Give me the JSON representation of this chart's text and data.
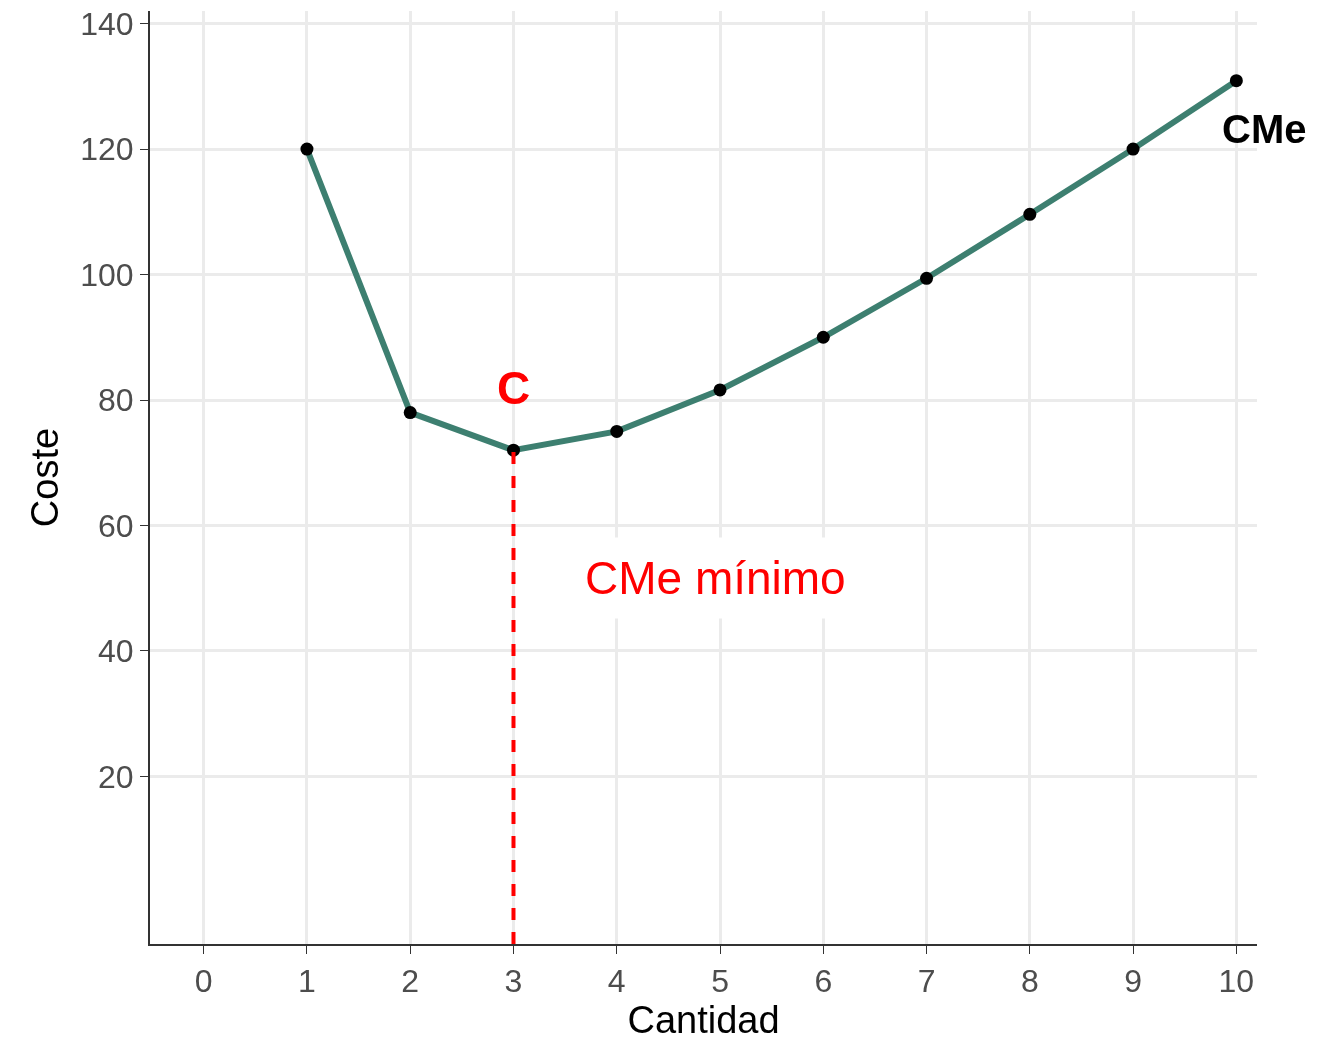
{
  "chart_data": {
    "type": "line",
    "xlabel": "Cantidad",
    "ylabel": "Coste",
    "x": [
      1,
      2,
      3,
      4,
      5,
      6,
      7,
      8,
      9,
      10
    ],
    "series": [
      {
        "color": "#3d7f70",
        "values": [
          120,
          78,
          72,
          75,
          81.6,
          90,
          99.4,
          109.6,
          120,
          130.9
        ]
      }
    ],
    "xlim": [
      -0.52,
      10.2
    ],
    "xticks": [
      0,
      1,
      2,
      3,
      4,
      5,
      6,
      7,
      8,
      9,
      10
    ],
    "ylim": [
      -6.7,
      142
    ],
    "yticks": [
      20,
      40,
      60,
      80,
      100,
      120,
      140
    ],
    "grid": true,
    "marker": "circle",
    "line_style": "solid",
    "ref_lines": [
      {
        "axis": "x",
        "value": 3,
        "label": "CMe mínimo",
        "color": "#ff0000",
        "line_style": "dashed"
      }
    ],
    "annotations": [
      {
        "text": "C",
        "x": 3,
        "y": 72
      },
      {
        "text": "CMe",
        "x": 10,
        "y": 130.9
      }
    ]
  }
}
